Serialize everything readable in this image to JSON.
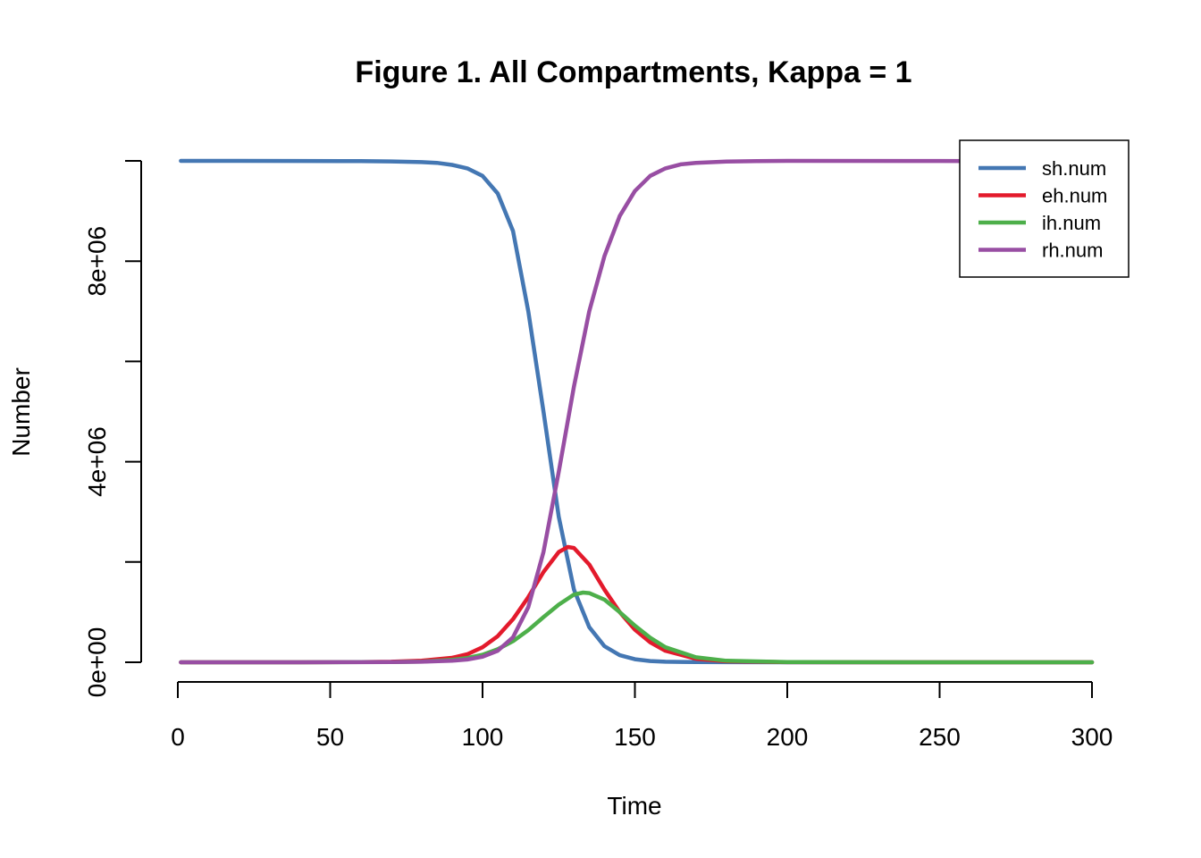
{
  "chart_data": {
    "type": "line",
    "title": "Figure 1. All Compartments, Kappa = 1",
    "xlabel": "Time",
    "ylabel": "Number",
    "xlim": [
      0,
      300
    ],
    "ylim": [
      0,
      10000000
    ],
    "x_ticks": [
      0,
      50,
      100,
      150,
      200,
      250,
      300
    ],
    "x_tick_labels": [
      "0",
      "50",
      "100",
      "150",
      "200",
      "250",
      "300"
    ],
    "y_ticks": [
      0,
      2000000,
      4000000,
      6000000,
      8000000,
      10000000
    ],
    "y_tick_labels": [
      "0e+00",
      "",
      "4e+06",
      "",
      "8e+06",
      ""
    ],
    "grid": false,
    "legend_position": "top-right",
    "series": [
      {
        "name": "sh.num",
        "color": "#4477b3",
        "x": [
          1,
          20,
          40,
          60,
          70,
          80,
          85,
          90,
          95,
          100,
          105,
          110,
          115,
          120,
          125,
          130,
          135,
          140,
          145,
          150,
          155,
          160,
          170,
          180,
          200,
          250,
          300
        ],
        "y": [
          10000000,
          10000000,
          9998000,
          9995000,
          9990000,
          9975000,
          9960000,
          9920000,
          9850000,
          9700000,
          9350000,
          8600000,
          7000000,
          5000000,
          2900000,
          1450000,
          700000,
          320000,
          140000,
          60000,
          25000,
          10000,
          3000,
          1000,
          500,
          0,
          0
        ]
      },
      {
        "name": "eh.num",
        "color": "#e31a2c",
        "x": [
          1,
          40,
          60,
          70,
          80,
          90,
          95,
          100,
          105,
          110,
          115,
          120,
          125,
          128,
          130,
          135,
          140,
          145,
          150,
          155,
          160,
          170,
          180,
          200,
          250,
          300
        ],
        "y": [
          0,
          0,
          5000,
          10000,
          30000,
          90000,
          160000,
          300000,
          520000,
          860000,
          1300000,
          1800000,
          2200000,
          2300000,
          2280000,
          1950000,
          1450000,
          1000000,
          650000,
          400000,
          230000,
          70000,
          20000,
          2000,
          0,
          0
        ]
      },
      {
        "name": "ih.num",
        "color": "#4daf4a",
        "x": [
          1,
          40,
          60,
          70,
          80,
          90,
          95,
          100,
          105,
          110,
          115,
          120,
          125,
          130,
          133,
          135,
          140,
          145,
          150,
          155,
          160,
          170,
          180,
          200,
          250,
          300
        ],
        "y": [
          0,
          0,
          3000,
          5000,
          15000,
          50000,
          85000,
          150000,
          260000,
          420000,
          640000,
          900000,
          1150000,
          1350000,
          1390000,
          1380000,
          1250000,
          1000000,
          730000,
          490000,
          300000,
          100000,
          30000,
          3000,
          0,
          0
        ]
      },
      {
        "name": "rh.num",
        "color": "#984ea3",
        "x": [
          1,
          40,
          60,
          70,
          80,
          90,
          95,
          100,
          105,
          110,
          115,
          120,
          125,
          130,
          135,
          140,
          145,
          150,
          155,
          160,
          165,
          170,
          180,
          190,
          200,
          250,
          300
        ],
        "y": [
          0,
          0,
          2000,
          5000,
          10000,
          30000,
          55000,
          110000,
          230000,
          500000,
          1100000,
          2200000,
          3800000,
          5500000,
          7000000,
          8100000,
          8900000,
          9400000,
          9700000,
          9850000,
          9930000,
          9960000,
          9985000,
          9995000,
          10000000,
          9998000,
          9990000
        ]
      }
    ]
  }
}
